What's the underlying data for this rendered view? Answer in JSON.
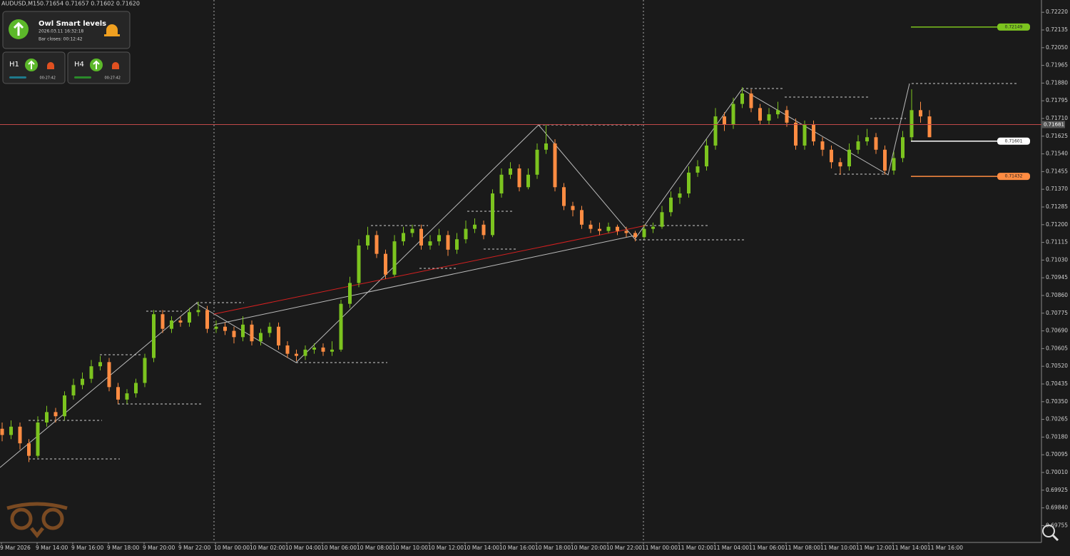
{
  "chart_data": {
    "type": "candlestick",
    "title": "AUDUSD,M15",
    "subtitle": "0.71654 0.71657 0.71602 0.71620",
    "up_color": "#7cc41f",
    "down_color": "#ff8c42",
    "x_labels": [
      "9 Mar 2026",
      "9 Mar 14:00",
      "9 Mar 16:00",
      "9 Mar 18:00",
      "9 Mar 20:00",
      "9 Mar 22:00",
      "10 Mar 00:00",
      "10 Mar 02:00",
      "10 Mar 04:00",
      "10 Mar 06:00",
      "10 Mar 08:00",
      "10 Mar 10:00",
      "10 Mar 12:00",
      "10 Mar 14:00",
      "10 Mar 16:00",
      "10 Mar 18:00",
      "10 Mar 20:00",
      "10 Mar 22:00",
      "11 Mar 00:00",
      "11 Mar 02:00",
      "11 Mar 04:00",
      "11 Mar 06:00",
      "11 Mar 08:00",
      "11 Mar 10:00",
      "11 Mar 12:00",
      "11 Mar 14:00",
      "11 Mar 16:00"
    ],
    "open": [
      0.7022,
      0.7019,
      0.7023,
      0.7015,
      0.7009,
      0.7025,
      0.703,
      0.7028,
      0.7038,
      0.7043,
      0.7046,
      0.7052,
      0.7054,
      0.7042,
      0.7036,
      0.7039,
      0.7044,
      0.7056,
      0.7077,
      0.707,
      0.7074,
      0.7073,
      0.7078,
      0.7079,
      0.707,
      0.7071,
      0.7069,
      0.7066,
      0.7072,
      0.7064,
      0.7068,
      0.7071,
      0.7062,
      0.7058,
      0.7057,
      0.706,
      0.7061,
      0.7059,
      0.706,
      0.7082,
      0.7092,
      0.711,
      0.7115,
      0.7106,
      0.7096,
      0.7112,
      0.7116,
      0.7118,
      0.711,
      0.7112,
      0.7115,
      0.7108,
      0.7113,
      0.7118,
      0.712,
      0.7115,
      0.7135,
      0.7144,
      0.7147,
      0.7138,
      0.7144,
      0.7156,
      0.7159,
      0.7138,
      0.7129,
      0.7127,
      0.712,
      0.7118,
      0.7117,
      0.7119,
      0.7117,
      0.7116,
      0.7114,
      0.7118,
      0.7119,
      0.7126,
      0.7133,
      0.7135,
      0.7145,
      0.7148,
      0.7158,
      0.7172,
      0.7168,
      0.7178,
      0.7183,
      0.7176,
      0.717,
      0.7173,
      0.7175,
      0.7169,
      0.7158,
      0.7168,
      0.716,
      0.7156,
      0.715,
      0.7148,
      0.7156,
      0.716,
      0.7162,
      0.7156,
      0.7146,
      0.7152,
      0.7162,
      0.7175,
      0.7172
    ],
    "high": [
      0.7025,
      0.7026,
      0.7025,
      0.7017,
      0.7028,
      0.7033,
      0.7032,
      0.704,
      0.7046,
      0.7049,
      0.7055,
      0.7057,
      0.7056,
      0.7044,
      0.7041,
      0.7046,
      0.7058,
      0.7079,
      0.7079,
      0.7076,
      0.7076,
      0.708,
      0.7083,
      0.7081,
      0.7074,
      0.7073,
      0.7071,
      0.7076,
      0.7074,
      0.707,
      0.7073,
      0.7073,
      0.7064,
      0.706,
      0.7062,
      0.7063,
      0.7063,
      0.7064,
      0.7084,
      0.7095,
      0.7113,
      0.7119,
      0.7117,
      0.7108,
      0.7115,
      0.7119,
      0.712,
      0.712,
      0.7115,
      0.7118,
      0.7117,
      0.7116,
      0.7122,
      0.7123,
      0.7122,
      0.7137,
      0.7147,
      0.715,
      0.7149,
      0.7147,
      0.7159,
      0.7168,
      0.7161,
      0.714,
      0.7131,
      0.7129,
      0.7122,
      0.7121,
      0.7121,
      0.712,
      0.7119,
      0.7117,
      0.712,
      0.7121,
      0.7129,
      0.7136,
      0.7138,
      0.7148,
      0.7151,
      0.7161,
      0.7176,
      0.7174,
      0.7181,
      0.7186,
      0.7185,
      0.7178,
      0.7176,
      0.7179,
      0.7177,
      0.7171,
      0.717,
      0.717,
      0.7162,
      0.7158,
      0.7152,
      0.7159,
      0.7163,
      0.7166,
      0.7164,
      0.7158,
      0.7155,
      0.7165,
      0.7185,
      0.7179,
      0.7175
    ],
    "low": [
      0.7016,
      0.7017,
      0.7012,
      0.7006,
      0.7008,
      0.7023,
      0.7025,
      0.7026,
      0.7036,
      0.7041,
      0.7044,
      0.705,
      0.704,
      0.7034,
      0.7034,
      0.7037,
      0.7042,
      0.7054,
      0.7068,
      0.7068,
      0.7071,
      0.7071,
      0.7076,
      0.7068,
      0.7068,
      0.7067,
      0.7063,
      0.7064,
      0.7062,
      0.7062,
      0.7066,
      0.706,
      0.7056,
      0.70545,
      0.7055,
      0.7058,
      0.7057,
      0.7057,
      0.7059,
      0.708,
      0.709,
      0.7108,
      0.7104,
      0.7094,
      0.7095,
      0.711,
      0.7114,
      0.7108,
      0.7108,
      0.711,
      0.7105,
      0.7106,
      0.7111,
      0.7116,
      0.7113,
      0.7114,
      0.7133,
      0.7142,
      0.7136,
      0.7137,
      0.7142,
      0.7154,
      0.7136,
      0.7127,
      0.7124,
      0.7118,
      0.7116,
      0.7115,
      0.7116,
      0.7115,
      0.7114,
      0.7112,
      0.7113,
      0.7116,
      0.7118,
      0.7124,
      0.713,
      0.7133,
      0.7143,
      0.7146,
      0.7156,
      0.7165,
      0.7166,
      0.7176,
      0.7174,
      0.7168,
      0.7168,
      0.7171,
      0.7167,
      0.7156,
      0.7156,
      0.7158,
      0.7153,
      0.7147,
      0.7144,
      0.7146,
      0.7154,
      0.7158,
      0.7154,
      0.7144,
      0.7144,
      0.715,
      0.716,
      0.7169,
      0.7162
    ],
    "close": [
      0.7019,
      0.7023,
      0.7015,
      0.7009,
      0.7025,
      0.703,
      0.7028,
      0.7038,
      0.7043,
      0.7046,
      0.7052,
      0.7054,
      0.7042,
      0.7036,
      0.7039,
      0.7044,
      0.7056,
      0.7077,
      0.707,
      0.7074,
      0.7073,
      0.7078,
      0.7079,
      0.707,
      0.7071,
      0.7069,
      0.7066,
      0.7072,
      0.7064,
      0.7068,
      0.7071,
      0.7062,
      0.7058,
      0.7057,
      0.706,
      0.7061,
      0.7059,
      0.706,
      0.7082,
      0.7092,
      0.711,
      0.7115,
      0.7106,
      0.7096,
      0.7112,
      0.7116,
      0.7118,
      0.711,
      0.7112,
      0.7115,
      0.7108,
      0.7113,
      0.7118,
      0.712,
      0.7115,
      0.7135,
      0.7144,
      0.7147,
      0.7138,
      0.7144,
      0.7156,
      0.7159,
      0.7138,
      0.7129,
      0.7127,
      0.712,
      0.7118,
      0.7117,
      0.7119,
      0.7117,
      0.7116,
      0.7114,
      0.7118,
      0.7119,
      0.7126,
      0.7133,
      0.7135,
      0.7145,
      0.7148,
      0.7158,
      0.7172,
      0.7168,
      0.7178,
      0.7183,
      0.7176,
      0.717,
      0.7173,
      0.7175,
      0.7169,
      0.7158,
      0.7168,
      0.716,
      0.7156,
      0.715,
      0.7148,
      0.7156,
      0.716,
      0.7162,
      0.7156,
      0.7146,
      0.7152,
      0.7162,
      0.7175,
      0.7172,
      0.7162
    ],
    "ylim": [
      0.69674,
      0.72279
    ],
    "yticks": [
      {
        "value": 0.7222,
        "label": "0.72220"
      },
      0.72135,
      {
        "value": 0.7205,
        "label": "0.72050"
      },
      0.71965,
      {
        "value": 0.7188,
        "label": "0.71880"
      },
      0.71795,
      {
        "value": 0.7171,
        "label": "0.71710"
      },
      0.71625,
      {
        "value": 0.7154,
        "label": "0.71540"
      },
      0.71455,
      {
        "value": 0.7137,
        "label": "0.71370"
      },
      0.71285,
      {
        "value": 0.712,
        "label": "0.71200"
      },
      0.71115,
      {
        "value": 0.7103,
        "label": "0.71030"
      },
      0.70945,
      {
        "value": 0.7086,
        "label": "0.70860"
      },
      0.70775,
      {
        "value": 0.7069,
        "label": "0.70690"
      },
      0.70605,
      {
        "value": 0.7052,
        "label": "0.70520"
      },
      0.70435,
      {
        "value": 0.7035,
        "label": "0.70350"
      },
      0.70265,
      {
        "value": 0.7018,
        "label": "0.70180"
      },
      0.70095,
      {
        "value": 0.7001,
        "label": "0.70010"
      },
      0.69925,
      {
        "value": 0.6984,
        "label": "0.69840"
      },
      0.69755
    ],
    "current_price": 0.71681,
    "levels": [
      {
        "value": 0.72149,
        "color": "#7cc41f"
      },
      {
        "value": 0.71601,
        "color": "#ffffff"
      },
      {
        "value": 0.71432,
        "color": "#ff8c42"
      }
    ]
  },
  "panel": {
    "title": "Owl Smart levels",
    "time": "2026.03.11 16:32:18",
    "bar_close": "Bar closes: 00:12:42",
    "h1": {
      "label": "H1",
      "timer": "00:27:42"
    },
    "h4": {
      "label": "H4",
      "timer": "00:27:42"
    }
  }
}
